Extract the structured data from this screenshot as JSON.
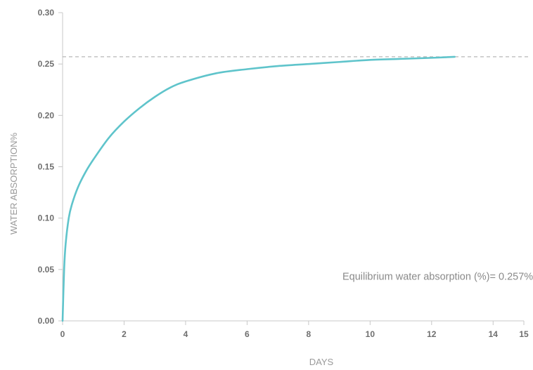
{
  "chart_data": {
    "type": "line",
    "title": "",
    "xlabel": "DAYS",
    "ylabel": "WATER ABSORPTION%",
    "xlim": [
      0,
      15
    ],
    "ylim": [
      0,
      0.3
    ],
    "x_ticks": [
      {
        "value": 0,
        "label": "0"
      },
      {
        "value": 2,
        "label": "2"
      },
      {
        "value": 4,
        "label": "4"
      },
      {
        "value": 6,
        "label": "6"
      },
      {
        "value": 8,
        "label": "8"
      },
      {
        "value": 10,
        "label": "10"
      },
      {
        "value": 12,
        "label": "12"
      },
      {
        "value": 14,
        "label": "14"
      },
      {
        "value": 15,
        "label": "15"
      }
    ],
    "y_ticks": [
      {
        "value": 0,
        "label": "0.00"
      },
      {
        "value": 0.05,
        "label": "0.05"
      },
      {
        "value": 0.1,
        "label": "0.10"
      },
      {
        "value": 0.15,
        "label": "0.15"
      },
      {
        "value": 0.2,
        "label": "0.20"
      },
      {
        "value": 0.25,
        "label": "0.25"
      },
      {
        "value": 0.3,
        "label": "0.30"
      }
    ],
    "grid": false,
    "legend": "none",
    "series": [
      {
        "color": "#5fc4cb",
        "x": [
          0,
          0.05,
          0.1,
          0.2,
          0.3,
          0.5,
          0.75,
          1,
          1.5,
          2,
          2.5,
          3,
          3.5,
          4,
          5,
          6,
          7,
          8,
          9,
          10,
          11,
          12,
          12.75
        ],
        "y": [
          0,
          0.05,
          0.075,
          0.1,
          0.113,
          0.13,
          0.145,
          0.157,
          0.178,
          0.194,
          0.207,
          0.218,
          0.227,
          0.233,
          0.241,
          0.245,
          0.248,
          0.25,
          0.252,
          0.254,
          0.255,
          0.256,
          0.257
        ]
      }
    ],
    "reference_line": {
      "y": 0.257,
      "style": "dashed",
      "color": "#a8a8a8"
    },
    "annotation": {
      "text": "Equilibrium water absorption (%)= 0.257%",
      "x": 9.1,
      "y": 0.04
    }
  }
}
